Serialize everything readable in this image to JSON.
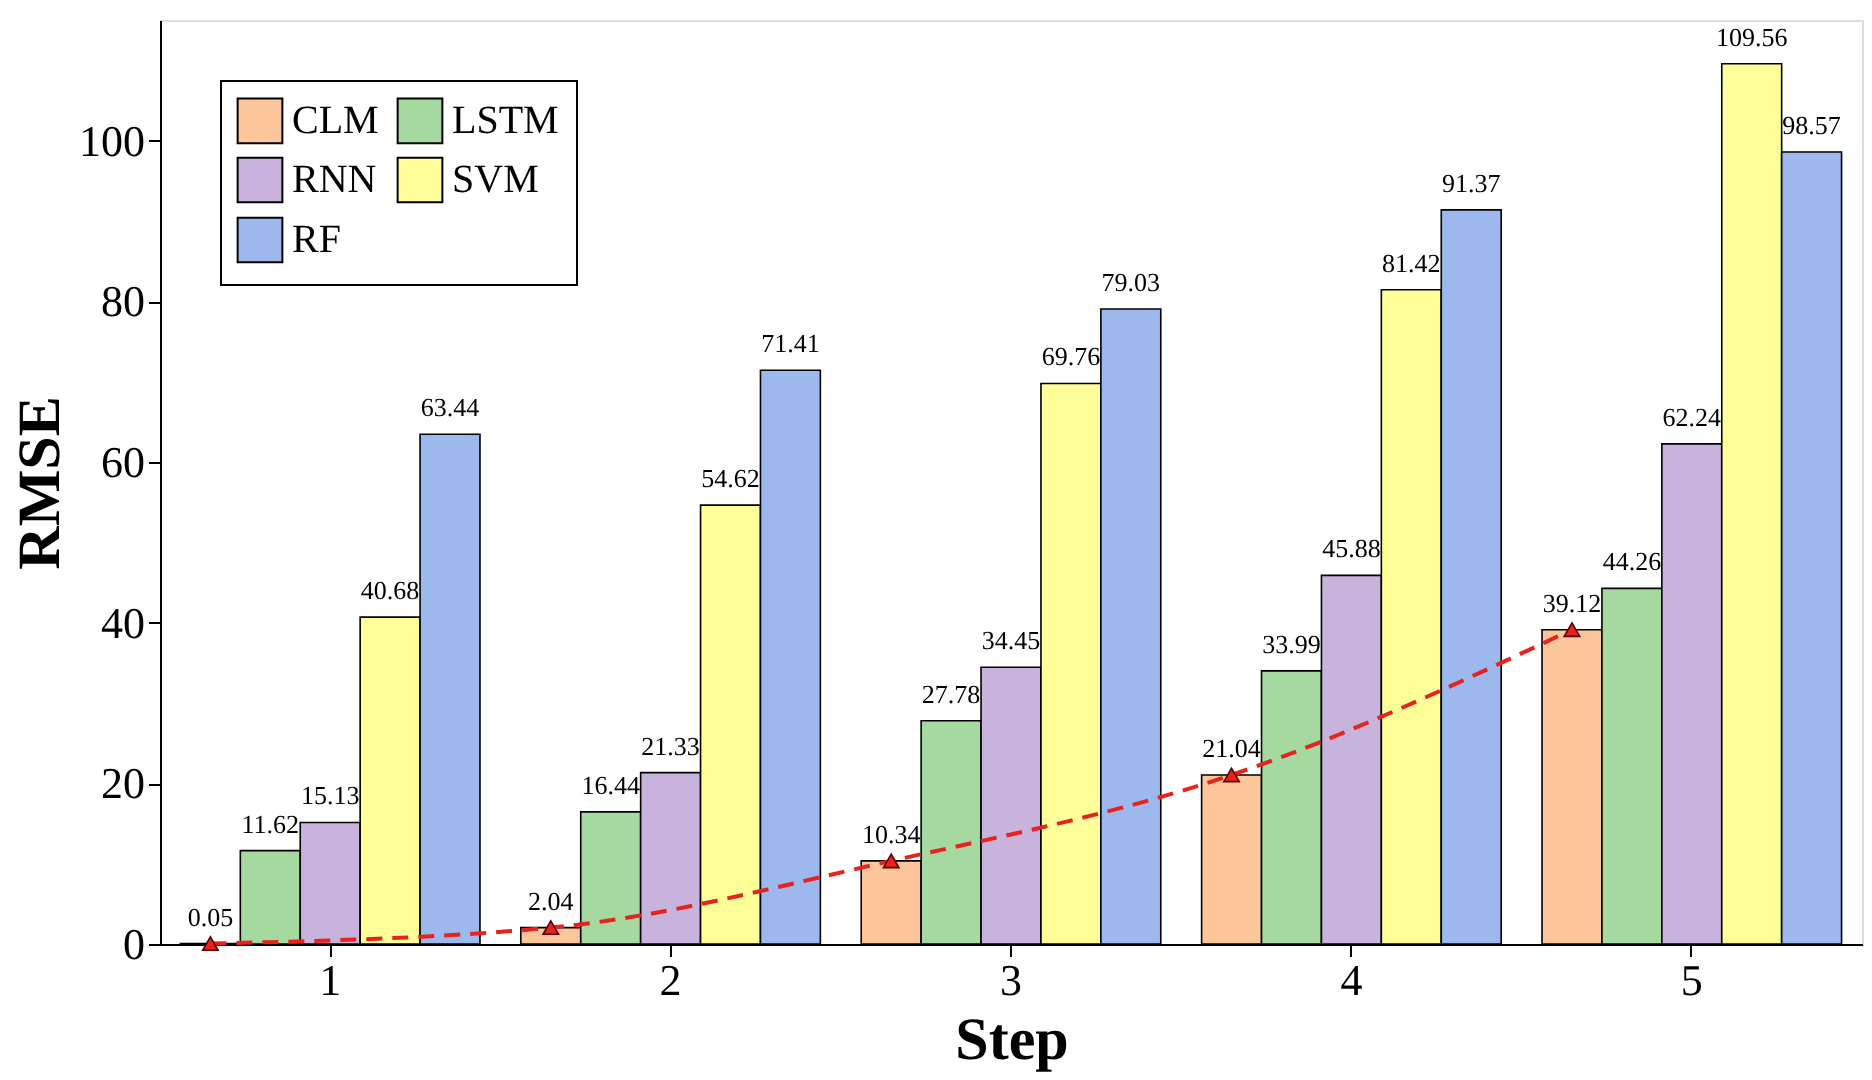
{
  "chart_data": {
    "type": "bar",
    "xlabel": "Step",
    "ylabel": "RMSE",
    "categories": [
      "1",
      "2",
      "3",
      "4",
      "5"
    ],
    "series": [
      {
        "name": "CLM",
        "color": "#fdc79b",
        "values": [
          0.05,
          2.04,
          10.34,
          21.04,
          39.12
        ]
      },
      {
        "name": "LSTM",
        "color": "#a6d9a0",
        "values": [
          11.62,
          16.44,
          27.78,
          33.99,
          44.26
        ]
      },
      {
        "name": "RNN",
        "color": "#c7b3dc",
        "values": [
          15.13,
          21.33,
          34.45,
          45.88,
          62.24
        ]
      },
      {
        "name": "SVM",
        "color": "#ffff99",
        "values": [
          40.68,
          54.62,
          69.76,
          81.42,
          109.56
        ]
      },
      {
        "name": "RF",
        "color": "#9cb8ec",
        "values": [
          63.44,
          71.41,
          79.03,
          91.37,
          98.57
        ]
      },
      {
        "type": "line",
        "x": [
          "1",
          "2",
          "3",
          "4",
          "5"
        ],
        "color": "#e8221c",
        "line_style": "dashed",
        "marker": "triangle",
        "values": [
          0.05,
          2.04,
          10.34,
          21.04,
          39.12
        ],
        "value_labels": [
          null,
          null,
          null,
          null,
          null
        ]
      }
    ],
    "ylim": [
      0,
      115
    ],
    "yticks": [
      0,
      20,
      40,
      60,
      80,
      100
    ],
    "data_labels": true,
    "legend": "top left",
    "grid": false
  }
}
